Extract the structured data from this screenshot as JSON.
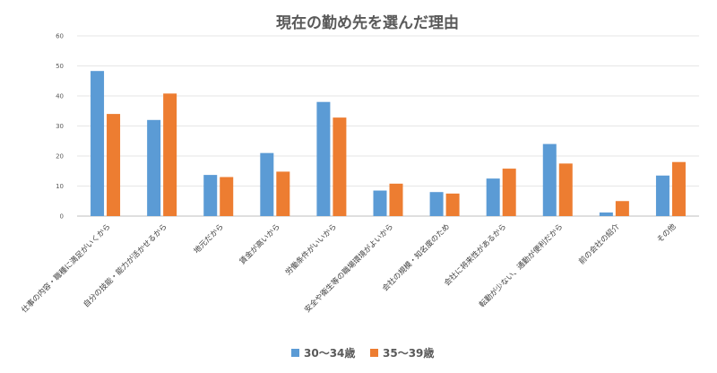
{
  "chart_data": {
    "type": "bar",
    "title": "現在の勤め先を選んだ理由",
    "xlabel": "",
    "ylabel": "",
    "ylim": [
      0,
      60
    ],
    "yticks": [
      0,
      10,
      20,
      30,
      40,
      50,
      60
    ],
    "grid": true,
    "legend_position": "bottom",
    "categories": [
      "仕事の内容・職種に満足がいくから",
      "自分の技能・能力が活かせるから",
      "地元だから",
      "賃金が高いから",
      "労働条件がいいから",
      "安全や衛生等の職場環境がよいから",
      "会社の規模・知名度のため",
      "会社に将来性があるから",
      "転勤が少ない、通勤が便利だから",
      "前の会社の紹介",
      "その他"
    ],
    "series": [
      {
        "name": "30〜34歳",
        "color": "#5b9bd5",
        "values": [
          48.3,
          32.0,
          13.7,
          21.0,
          38.0,
          8.5,
          8.0,
          12.5,
          24.0,
          1.2,
          13.5
        ]
      },
      {
        "name": "35〜39歳",
        "color": "#ed7d31",
        "values": [
          34.0,
          40.8,
          13.0,
          14.8,
          32.8,
          10.8,
          7.5,
          15.8,
          17.5,
          5.0,
          18.0
        ]
      }
    ]
  }
}
